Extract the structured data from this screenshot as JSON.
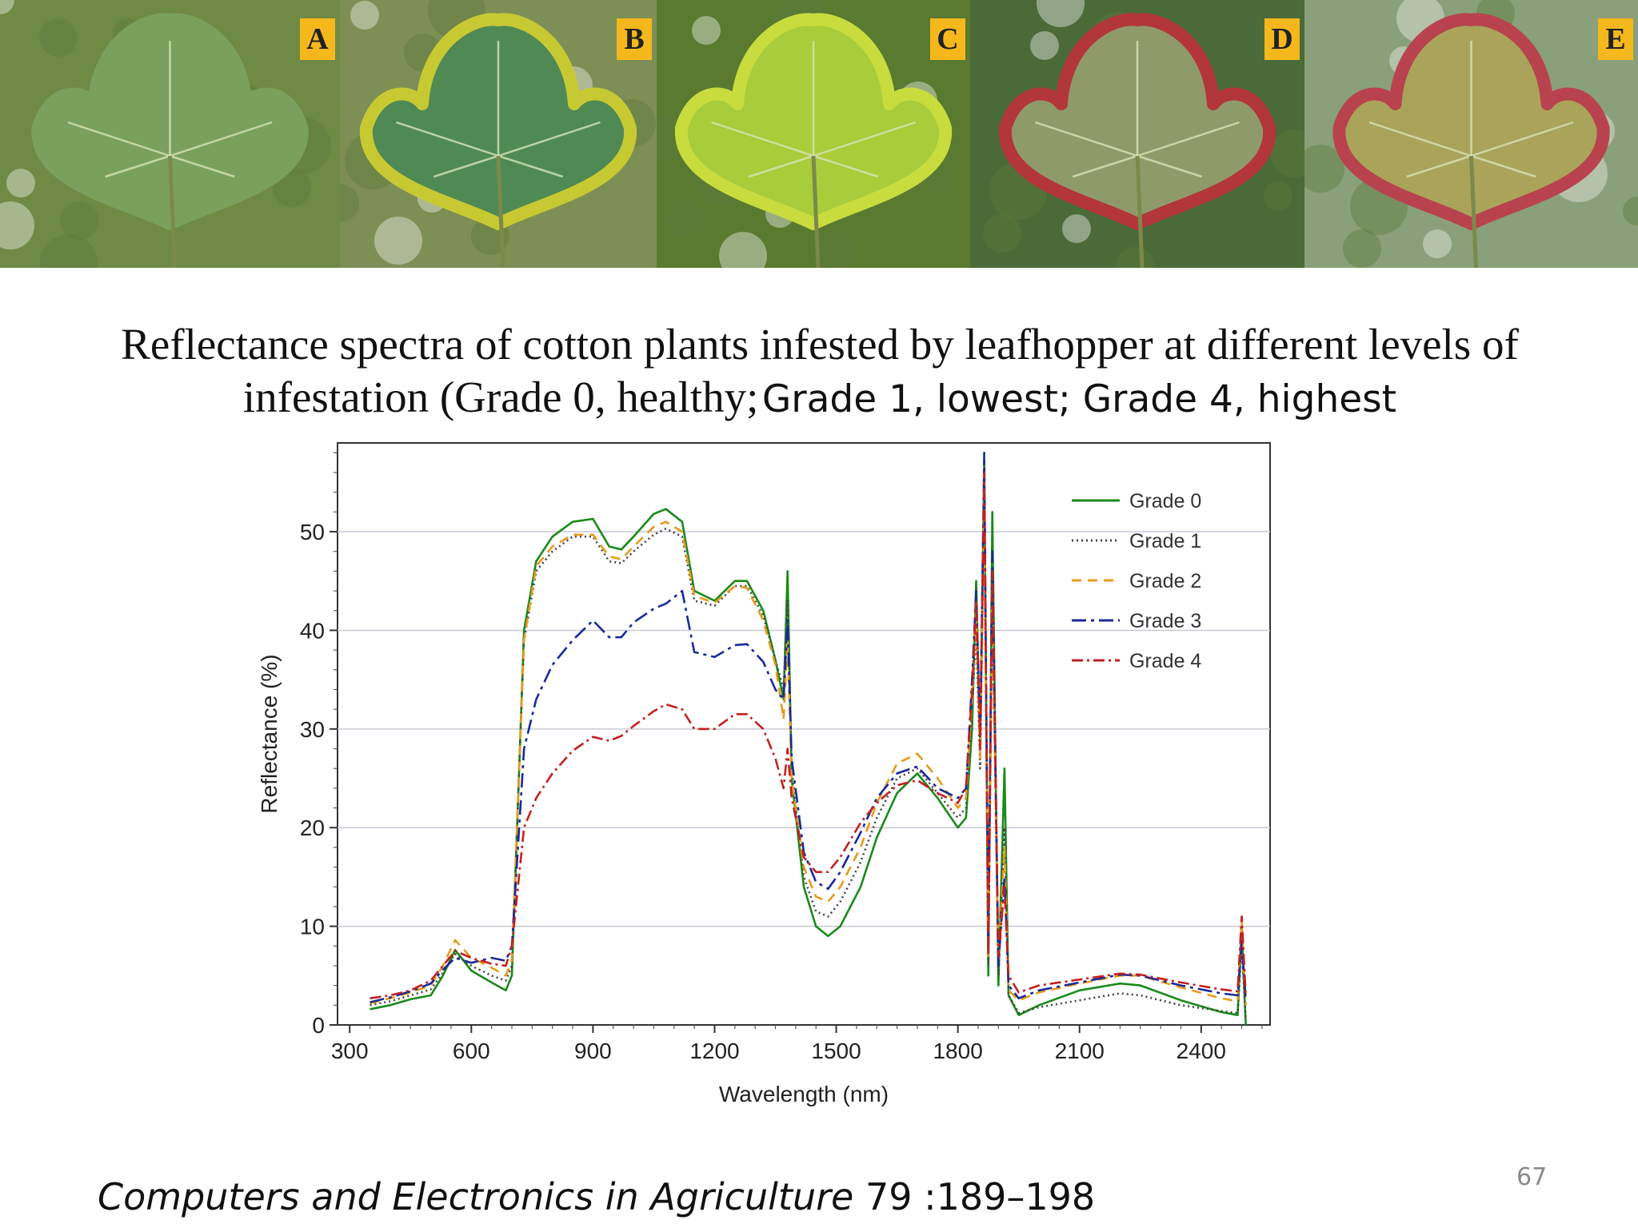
{
  "photos": [
    {
      "label": "A",
      "leaf_color": "#7aa05e",
      "edge_color": "#7aa05e",
      "bg_color": "#6f8a45"
    },
    {
      "label": "B",
      "leaf_color": "#4f8a55",
      "edge_color": "#c7c933",
      "bg_color": "#7e8f55"
    },
    {
      "label": "C",
      "leaf_color": "#a8cc3a",
      "edge_color": "#c9dc3e",
      "bg_color": "#5a7a30"
    },
    {
      "label": "D",
      "leaf_color": "#8f9a6a",
      "edge_color": "#b2363a",
      "bg_color": "#4a6a38"
    },
    {
      "label": "E",
      "leaf_color": "#a9a45a",
      "edge_color": "#b8434e",
      "bg_color": "#8aa07a"
    }
  ],
  "title": {
    "part1": "Reflectance spectra of cotton plants infested by leafhopper at different levels of",
    "part2": "infestation (Grade 0, healthy;",
    "part3": "Grade 1, lowest; Grade 4, highest"
  },
  "chart_data": {
    "type": "line",
    "xlabel": "Wavelength (nm)",
    "ylabel": "Reflectance (%)",
    "xlim": [
      270,
      2570
    ],
    "ylim": [
      0,
      59
    ],
    "xticks": [
      300,
      600,
      900,
      1200,
      1500,
      1800,
      2100,
      2400
    ],
    "yticks": [
      0,
      10,
      20,
      30,
      40,
      50
    ],
    "grid": "horizontal",
    "legend_position": "top-right",
    "series": [
      {
        "name": "Grade 0",
        "color": "#1a8a1a",
        "dash": "solid",
        "points": [
          [
            350,
            1.6
          ],
          [
            400,
            2
          ],
          [
            450,
            2.6
          ],
          [
            500,
            3
          ],
          [
            530,
            5
          ],
          [
            560,
            7.6
          ],
          [
            600,
            5.5
          ],
          [
            650,
            4.3
          ],
          [
            685,
            3.5
          ],
          [
            700,
            5
          ],
          [
            730,
            40
          ],
          [
            760,
            47
          ],
          [
            800,
            49.5
          ],
          [
            850,
            51
          ],
          [
            900,
            51.3
          ],
          [
            940,
            48.5
          ],
          [
            970,
            48.2
          ],
          [
            1000,
            49.5
          ],
          [
            1050,
            51.8
          ],
          [
            1080,
            52.3
          ],
          [
            1120,
            51
          ],
          [
            1150,
            44
          ],
          [
            1200,
            43
          ],
          [
            1250,
            45
          ],
          [
            1280,
            45
          ],
          [
            1320,
            42
          ],
          [
            1350,
            37
          ],
          [
            1370,
            33
          ],
          [
            1380,
            46
          ],
          [
            1390,
            25
          ],
          [
            1420,
            14
          ],
          [
            1450,
            10
          ],
          [
            1480,
            9
          ],
          [
            1510,
            10
          ],
          [
            1560,
            14
          ],
          [
            1600,
            19
          ],
          [
            1650,
            23.5
          ],
          [
            1700,
            25.5
          ],
          [
            1750,
            23
          ],
          [
            1800,
            20
          ],
          [
            1820,
            21
          ],
          [
            1835,
            30
          ],
          [
            1845,
            45
          ],
          [
            1855,
            28
          ],
          [
            1865,
            57
          ],
          [
            1875,
            5
          ],
          [
            1885,
            52
          ],
          [
            1900,
            4
          ],
          [
            1915,
            26
          ],
          [
            1925,
            3
          ],
          [
            1950,
            1
          ],
          [
            2000,
            2
          ],
          [
            2100,
            3.5
          ],
          [
            2200,
            4.2
          ],
          [
            2250,
            4
          ],
          [
            2350,
            2.5
          ],
          [
            2450,
            1.3
          ],
          [
            2490,
            1
          ],
          [
            2500,
            9.5
          ],
          [
            2510,
            0
          ]
        ]
      },
      {
        "name": "Grade 1",
        "color": "#444444",
        "dash": "2 4",
        "points": [
          [
            350,
            2
          ],
          [
            400,
            2.4
          ],
          [
            450,
            3
          ],
          [
            500,
            3.6
          ],
          [
            530,
            5.3
          ],
          [
            560,
            7.2
          ],
          [
            600,
            6
          ],
          [
            650,
            5
          ],
          [
            685,
            4.5
          ],
          [
            700,
            6
          ],
          [
            730,
            39
          ],
          [
            760,
            46
          ],
          [
            800,
            48
          ],
          [
            850,
            49.5
          ],
          [
            900,
            49.5
          ],
          [
            940,
            47
          ],
          [
            970,
            46.8
          ],
          [
            1000,
            48
          ],
          [
            1050,
            49.7
          ],
          [
            1080,
            50.3
          ],
          [
            1120,
            49.5
          ],
          [
            1150,
            43
          ],
          [
            1200,
            42.5
          ],
          [
            1250,
            44.5
          ],
          [
            1280,
            44.5
          ],
          [
            1320,
            41.5
          ],
          [
            1350,
            37
          ],
          [
            1370,
            34
          ],
          [
            1380,
            43
          ],
          [
            1390,
            26
          ],
          [
            1420,
            15
          ],
          [
            1450,
            11.5
          ],
          [
            1480,
            11
          ],
          [
            1510,
            12.5
          ],
          [
            1560,
            16.5
          ],
          [
            1600,
            21
          ],
          [
            1650,
            25
          ],
          [
            1700,
            26
          ],
          [
            1750,
            23.5
          ],
          [
            1800,
            21
          ],
          [
            1820,
            22
          ],
          [
            1835,
            32
          ],
          [
            1845,
            40
          ],
          [
            1855,
            26
          ],
          [
            1865,
            55
          ],
          [
            1875,
            6
          ],
          [
            1885,
            45
          ],
          [
            1900,
            5
          ],
          [
            1915,
            20
          ],
          [
            1925,
            3
          ],
          [
            1950,
            1.2
          ],
          [
            2000,
            1.8
          ],
          [
            2100,
            2.5
          ],
          [
            2200,
            3.2
          ],
          [
            2250,
            3
          ],
          [
            2350,
            2
          ],
          [
            2450,
            1.4
          ],
          [
            2490,
            1.2
          ],
          [
            2500,
            8
          ],
          [
            2510,
            0.5
          ]
        ]
      },
      {
        "name": "Grade 2",
        "color": "#e89a1c",
        "dash": "12 8",
        "points": [
          [
            350,
            2.2
          ],
          [
            400,
            2.7
          ],
          [
            450,
            3.3
          ],
          [
            500,
            4
          ],
          [
            530,
            6
          ],
          [
            560,
            8.6
          ],
          [
            600,
            6.8
          ],
          [
            650,
            5.8
          ],
          [
            685,
            5
          ],
          [
            700,
            6.5
          ],
          [
            730,
            39
          ],
          [
            760,
            46.5
          ],
          [
            800,
            48.5
          ],
          [
            850,
            49.7
          ],
          [
            900,
            49.7
          ],
          [
            940,
            47.5
          ],
          [
            970,
            47.2
          ],
          [
            1000,
            48.5
          ],
          [
            1050,
            50.5
          ],
          [
            1080,
            51
          ],
          [
            1120,
            50
          ],
          [
            1150,
            43.5
          ],
          [
            1200,
            42.8
          ],
          [
            1250,
            44.5
          ],
          [
            1280,
            44.3
          ],
          [
            1320,
            41
          ],
          [
            1350,
            36.5
          ],
          [
            1370,
            31
          ],
          [
            1380,
            39
          ],
          [
            1390,
            25
          ],
          [
            1420,
            16
          ],
          [
            1450,
            13
          ],
          [
            1480,
            12.5
          ],
          [
            1510,
            14
          ],
          [
            1560,
            18
          ],
          [
            1600,
            22.5
          ],
          [
            1650,
            26.5
          ],
          [
            1700,
            27.5
          ],
          [
            1750,
            25
          ],
          [
            1800,
            22
          ],
          [
            1820,
            23
          ],
          [
            1835,
            33
          ],
          [
            1845,
            42
          ],
          [
            1855,
            27
          ],
          [
            1865,
            53
          ],
          [
            1875,
            7
          ],
          [
            1885,
            43
          ],
          [
            1900,
            6
          ],
          [
            1915,
            18
          ],
          [
            1925,
            3.5
          ],
          [
            1950,
            2.5
          ],
          [
            2000,
            3.3
          ],
          [
            2100,
            4.2
          ],
          [
            2200,
            5
          ],
          [
            2250,
            5
          ],
          [
            2350,
            3.8
          ],
          [
            2450,
            2.7
          ],
          [
            2490,
            2.4
          ],
          [
            2500,
            10.5
          ],
          [
            2510,
            2
          ]
        ]
      },
      {
        "name": "Grade 3",
        "color": "#1a2a9a",
        "dash": "18 6 4 6",
        "points": [
          [
            350,
            2.3
          ],
          [
            400,
            2.8
          ],
          [
            450,
            3.4
          ],
          [
            500,
            4.2
          ],
          [
            530,
            5.6
          ],
          [
            560,
            6.8
          ],
          [
            600,
            6.3
          ],
          [
            650,
            6.8
          ],
          [
            685,
            6.5
          ],
          [
            700,
            8
          ],
          [
            730,
            28
          ],
          [
            760,
            33
          ],
          [
            800,
            36.5
          ],
          [
            850,
            39
          ],
          [
            900,
            41
          ],
          [
            940,
            39.3
          ],
          [
            970,
            39.3
          ],
          [
            1000,
            40.8
          ],
          [
            1050,
            42.2
          ],
          [
            1080,
            42.7
          ],
          [
            1120,
            44
          ],
          [
            1150,
            37.8
          ],
          [
            1200,
            37.3
          ],
          [
            1250,
            38.5
          ],
          [
            1280,
            38.6
          ],
          [
            1320,
            36.8
          ],
          [
            1350,
            34
          ],
          [
            1370,
            33
          ],
          [
            1380,
            41
          ],
          [
            1390,
            27
          ],
          [
            1420,
            17.5
          ],
          [
            1450,
            14.5
          ],
          [
            1480,
            13.8
          ],
          [
            1510,
            15.5
          ],
          [
            1560,
            19.5
          ],
          [
            1600,
            23
          ],
          [
            1650,
            25.5
          ],
          [
            1700,
            26.2
          ],
          [
            1750,
            24
          ],
          [
            1800,
            23
          ],
          [
            1820,
            24
          ],
          [
            1835,
            35
          ],
          [
            1845,
            44
          ],
          [
            1855,
            29
          ],
          [
            1865,
            58
          ],
          [
            1875,
            8
          ],
          [
            1885,
            48
          ],
          [
            1900,
            6
          ],
          [
            1915,
            15
          ],
          [
            1925,
            4
          ],
          [
            1950,
            2.7
          ],
          [
            2000,
            3.5
          ],
          [
            2100,
            4.3
          ],
          [
            2200,
            5.1
          ],
          [
            2250,
            5
          ],
          [
            2350,
            4
          ],
          [
            2450,
            3.2
          ],
          [
            2490,
            3
          ],
          [
            2500,
            8.5
          ],
          [
            2510,
            2.5
          ]
        ]
      },
      {
        "name": "Grade 4",
        "color": "#c42020",
        "dash": "14 5 3 5",
        "points": [
          [
            350,
            2.7
          ],
          [
            400,
            3
          ],
          [
            450,
            3.5
          ],
          [
            500,
            4.5
          ],
          [
            530,
            6
          ],
          [
            560,
            7.5
          ],
          [
            600,
            6.8
          ],
          [
            650,
            6.2
          ],
          [
            685,
            6
          ],
          [
            700,
            8
          ],
          [
            730,
            20
          ],
          [
            760,
            23
          ],
          [
            800,
            25.5
          ],
          [
            850,
            27.8
          ],
          [
            900,
            29.2
          ],
          [
            940,
            28.8
          ],
          [
            970,
            29.3
          ],
          [
            1000,
            30.3
          ],
          [
            1050,
            31.8
          ],
          [
            1080,
            32.5
          ],
          [
            1120,
            32
          ],
          [
            1150,
            30
          ],
          [
            1200,
            30
          ],
          [
            1250,
            31.5
          ],
          [
            1280,
            31.5
          ],
          [
            1320,
            30
          ],
          [
            1350,
            27
          ],
          [
            1370,
            24
          ],
          [
            1380,
            28
          ],
          [
            1390,
            23
          ],
          [
            1420,
            17
          ],
          [
            1450,
            15.5
          ],
          [
            1480,
            15.5
          ],
          [
            1510,
            17
          ],
          [
            1560,
            20.5
          ],
          [
            1600,
            22.5
          ],
          [
            1650,
            24.3
          ],
          [
            1700,
            24.8
          ],
          [
            1750,
            23.5
          ],
          [
            1800,
            22.5
          ],
          [
            1820,
            24
          ],
          [
            1835,
            34
          ],
          [
            1845,
            43
          ],
          [
            1855,
            28
          ],
          [
            1865,
            56
          ],
          [
            1875,
            7
          ],
          [
            1885,
            46
          ],
          [
            1900,
            7
          ],
          [
            1915,
            14
          ],
          [
            1925,
            5
          ],
          [
            1950,
            3.3
          ],
          [
            2000,
            4
          ],
          [
            2100,
            4.6
          ],
          [
            2200,
            5.2
          ],
          [
            2250,
            5.1
          ],
          [
            2350,
            4.3
          ],
          [
            2450,
            3.6
          ],
          [
            2490,
            3.4
          ],
          [
            2500,
            11
          ],
          [
            2510,
            3
          ]
        ]
      }
    ]
  },
  "citation": {
    "journal": "Computers and Electronics in Agriculture",
    "ref": " 79 :189–198"
  },
  "page_number": "67"
}
